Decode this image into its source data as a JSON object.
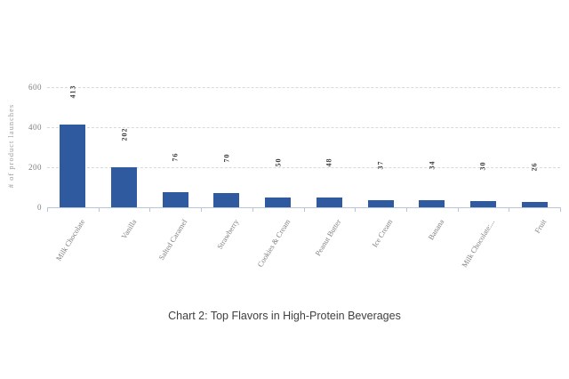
{
  "chart_data": {
    "type": "bar",
    "categories": [
      "Milk Chocolate",
      "Vanilla",
      "Salted Caramel",
      "Strawberry",
      "Cookies & Cream",
      "Peanut Butter",
      "Ice Cream",
      "Banana",
      "Milk Chocolate:...",
      "Fruit"
    ],
    "values": [
      413,
      202,
      76,
      70,
      50,
      48,
      37,
      34,
      30,
      26
    ],
    "caption": "Chart 2: Top Flavors in High-Protein Beverages",
    "xlabel": "",
    "ylabel": "# of product launches",
    "yticks": [
      0,
      200,
      400,
      600
    ],
    "ylim": [
      0,
      600
    ],
    "grid": "horizontal-dashed",
    "legend": "none",
    "bar_color": "#2f5aa0",
    "gridline_color": "#d9d9d9",
    "axis_color": "#b7c6da",
    "tick_text_color": "#7f7f7f",
    "value_label_color": "#404040"
  }
}
